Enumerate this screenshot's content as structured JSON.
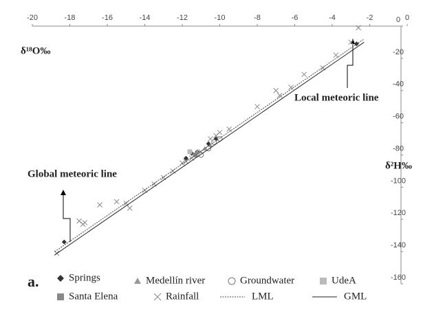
{
  "chart_data": {
    "type": "scatter",
    "panel_label": "a.",
    "xlabel": "δ¹⁸O‰",
    "ylabel": "δ²H‰",
    "annotations": [
      "Global meteoric line",
      "Local meteoric line"
    ],
    "xlim": [
      -20,
      0
    ],
    "ylim": [
      -160,
      0
    ],
    "xticks": [
      -20,
      -18,
      -16,
      -14,
      -12,
      -10,
      -8,
      -6,
      -4,
      -2,
      0
    ],
    "yticks": [
      0,
      -20,
      -40,
      -60,
      -80,
      -100,
      -120,
      -140,
      -160
    ],
    "series": [
      {
        "name": "Springs",
        "marker": "diamond",
        "color": "#333333",
        "x": [
          -18.3,
          -11.8,
          -11.5,
          -11.2,
          -10.6,
          -10.2,
          -2.7
        ],
        "values": [
          -134,
          -82,
          -79,
          -78,
          -73,
          -70,
          -11
        ]
      },
      {
        "name": "Medellín river",
        "marker": "triangle",
        "color": "#999999",
        "x": [
          -11.2,
          -10.8,
          -10.5
        ],
        "values": [
          -78,
          -76,
          -74
        ]
      },
      {
        "name": "Groundwater",
        "marker": "circle",
        "color": "#777777",
        "x": [
          -11.0,
          -10.6,
          -10.3,
          -10.0
        ],
        "values": [
          -80,
          -76,
          -72,
          -70
        ]
      },
      {
        "name": "UdeA",
        "marker": "square",
        "color": "#bbbbbb",
        "x": [
          -11.6
        ],
        "values": [
          -78
        ]
      },
      {
        "name": "Santa Elena",
        "marker": "square",
        "color": "#888888",
        "x": [
          -11.3
        ],
        "values": [
          -80
        ]
      },
      {
        "name": "Rainfall",
        "marker": "cross",
        "color": "#888888",
        "x": [
          -18.7,
          -17.5,
          -17.3,
          -17.2,
          -16.4,
          -15.5,
          -15.0,
          -14.8,
          -14.0,
          -13.5,
          -13.0,
          -12.5,
          -12.0,
          -11.8,
          -11.5,
          -11.0,
          -10.5,
          -10.2,
          -10.0,
          -9.5,
          -8.0,
          -7.0,
          -6.8,
          -6.2,
          -5.5,
          -4.5,
          -3.8,
          -3.0,
          -2.6
        ],
        "values": [
          -141,
          -121,
          -123,
          -122,
          -111,
          -109,
          -110,
          -113,
          -102,
          -98,
          -94,
          -90,
          -85,
          -84,
          -82,
          -78,
          -70,
          -68,
          -66,
          -64,
          -50,
          -40,
          -43,
          -38,
          -30,
          -26,
          -18,
          -10,
          -1
        ]
      },
      {
        "name": "LML",
        "marker": "dotted-line",
        "color": "#444444",
        "x": [
          -18.8,
          -2.3
        ],
        "values": [
          -140,
          -8
        ]
      },
      {
        "name": "GML",
        "marker": "solid-line",
        "color": "#222222",
        "x": [
          -18.8,
          -2.3
        ],
        "values": [
          -142,
          -10
        ]
      }
    ]
  }
}
